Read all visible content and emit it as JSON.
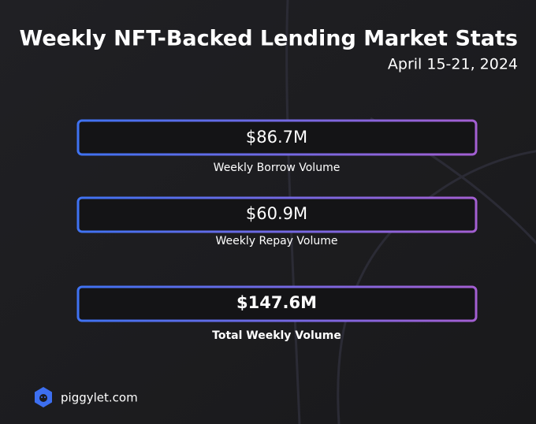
{
  "header": {
    "title": "Weekly NFT-Backed Lending Market Stats",
    "subtitle": "April 15-21, 2024"
  },
  "stats": [
    {
      "value": "$86.7M",
      "label": "Weekly Borrow Volume"
    },
    {
      "value": "$60.9M",
      "label": "Weekly Repay Volume"
    },
    {
      "value": "$147.6M",
      "label": "Total Weekly Volume"
    }
  ],
  "footer": {
    "brand": "piggylet.com"
  }
}
